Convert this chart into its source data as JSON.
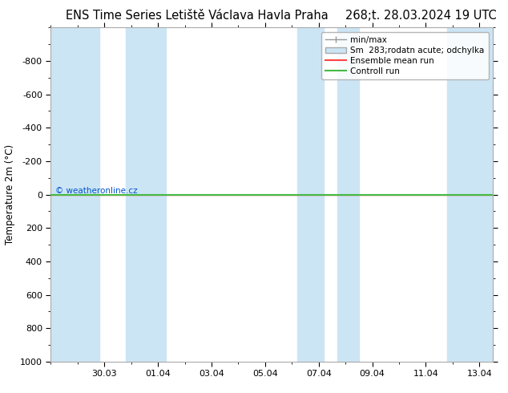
{
  "title_left": "ENS Time Series Letiště Václava Havla Praha",
  "title_right": "268;t. 28.03.2024 19 UTC",
  "ylabel": "Temperature 2m (°C)",
  "ylim_bottom": 1000,
  "ylim_top": -1000,
  "yticks": [
    -800,
    -600,
    -400,
    -200,
    0,
    200,
    400,
    600,
    800,
    1000
  ],
  "xtick_labels": [
    "30.03",
    "01.04",
    "03.04",
    "05.04",
    "07.04",
    "09.04",
    "11.04",
    "13.04"
  ],
  "xtick_positions": [
    2,
    4,
    6,
    8,
    10,
    12,
    14,
    16
  ],
  "xlim": [
    0,
    16.5
  ],
  "background_color": "#ffffff",
  "plot_bg_color": "#ffffff",
  "blue_band_color": "#cce5f5",
  "blue_bands": [
    [
      0.0,
      1.8
    ],
    [
      2.8,
      4.3
    ],
    [
      9.2,
      10.2
    ],
    [
      10.7,
      11.5
    ],
    [
      14.8,
      16.5
    ]
  ],
  "green_line_y": 0,
  "green_line_color": "#44bb44",
  "red_line_color": "#ff4444",
  "copyright_text": "© weatheronline.cz",
  "copyright_color": "#0055cc",
  "legend_label_minmax": "min/max",
  "legend_label_sm": "Sm  283;rodatn acute; odchylka",
  "legend_label_ens": "Ensemble mean run",
  "legend_label_ctrl": "Controll run",
  "title_fontsize": 10.5,
  "axis_fontsize": 8.5,
  "tick_fontsize": 8,
  "legend_fontsize": 7.5
}
